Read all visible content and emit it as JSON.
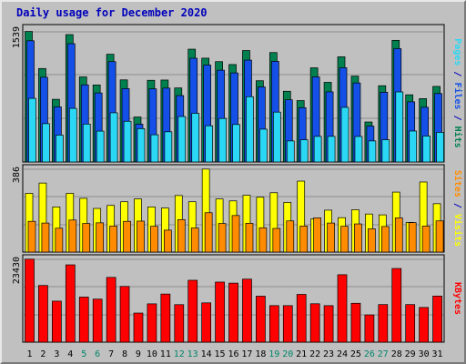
{
  "chart_data": [
    {
      "type": "bar",
      "title": "Daily usage for December 2020",
      "categories": [
        "1",
        "2",
        "3",
        "4",
        "5",
        "6",
        "7",
        "8",
        "9",
        "10",
        "11",
        "12",
        "13",
        "14",
        "15",
        "16",
        "17",
        "18",
        "19",
        "20",
        "21",
        "22",
        "23",
        "24",
        "25",
        "26",
        "27",
        "28",
        "29",
        "30",
        "31"
      ],
      "weekend_days": [
        "5",
        "6",
        "12",
        "13",
        "19",
        "20",
        "26",
        "27"
      ],
      "ymax_label": "1539",
      "ymax": 1539,
      "axis_legend": [
        "Pages",
        "Files",
        "Hits"
      ],
      "series": [
        {
          "name": "Hits",
          "color": "#007f4f",
          "values": [
            1539,
            1102,
            739,
            1502,
            1003,
            908,
            1270,
            968,
            530,
            963,
            966,
            873,
            1330,
            1224,
            1183,
            1149,
            1314,
            958,
            1290,
            834,
            724,
            1110,
            939,
            1240,
            1012,
            472,
            899,
            1434,
            792,
            747,
            891
          ]
        },
        {
          "name": "Files",
          "color": "#1450e8",
          "values": [
            1429,
            999,
            650,
            1395,
            909,
            814,
            1183,
            865,
            446,
            862,
            871,
            783,
            1223,
            1143,
            1082,
            1050,
            1201,
            885,
            1186,
            733,
            640,
            1003,
            827,
            1111,
            932,
            423,
            822,
            1336,
            709,
            645,
            807
          ]
        },
        {
          "name": "Pages",
          "color": "#2ad8f5",
          "values": [
            750,
            452,
            317,
            632,
            447,
            364,
            580,
            480,
            393,
            321,
            356,
            536,
            574,
            427,
            513,
            442,
            770,
            387,
            588,
            248,
            262,
            302,
            302,
            644,
            301,
            248,
            262,
            826,
            365,
            306,
            349
          ]
        }
      ]
    },
    {
      "type": "bar",
      "categories": [
        "1",
        "2",
        "3",
        "4",
        "5",
        "6",
        "7",
        "8",
        "9",
        "10",
        "11",
        "12",
        "13",
        "14",
        "15",
        "16",
        "17",
        "18",
        "19",
        "20",
        "21",
        "22",
        "23",
        "24",
        "25",
        "26",
        "27",
        "28",
        "29",
        "30",
        "31"
      ],
      "ymax_label": "386",
      "ymax": 386,
      "axis_legend": [
        "Sites",
        "Visits"
      ],
      "series": [
        {
          "name": "Visits",
          "color": "#ffff00",
          "values": [
            273,
            321,
            210,
            273,
            250,
            203,
            217,
            234,
            247,
            210,
            205,
            263,
            234,
            386,
            247,
            238,
            264,
            255,
            276,
            231,
            330,
            154,
            195,
            160,
            197,
            177,
            173,
            279,
            138,
            326,
            225
          ]
        },
        {
          "name": "Sites",
          "color": "#ff8c00",
          "values": [
            143,
            135,
            111,
            149,
            133,
            136,
            121,
            143,
            144,
            120,
            102,
            151,
            112,
            183,
            133,
            170,
            134,
            113,
            110,
            145,
            121,
            159,
            135,
            120,
            131,
            108,
            119,
            159,
            137,
            121,
            145
          ]
        }
      ]
    },
    {
      "type": "bar",
      "categories": [
        "1",
        "2",
        "3",
        "4",
        "5",
        "6",
        "7",
        "8",
        "9",
        "10",
        "11",
        "12",
        "13",
        "14",
        "15",
        "16",
        "17",
        "18",
        "19",
        "20",
        "21",
        "22",
        "23",
        "24",
        "25",
        "26",
        "27",
        "28",
        "29",
        "30",
        "31"
      ],
      "ymax_label": "23430",
      "ymax": 23430,
      "axis_legend": [
        "KBytes"
      ],
      "series": [
        {
          "name": "KBytes",
          "color": "#ff0000",
          "values": [
            23430,
            16002,
            11580,
            21828,
            12728,
            12144,
            18282,
            15736,
            8214,
            10816,
            13582,
            10584,
            17474,
            11090,
            16958,
            16668,
            17794,
            12978,
            10316,
            10308,
            13484,
            10840,
            10308,
            19040,
            10980,
            7694,
            10612,
            20800,
            10608,
            9796,
            13018
          ]
        }
      ]
    }
  ],
  "legend_colors": {
    "Hits": "#007f4f",
    "Files": "#1450e8",
    "Pages": "#2ad8f5",
    "Visits": "#ffff00",
    "Sites": "#ff8c00",
    "KBytes": "#ff0000",
    "separator": "#0000bb",
    "title": "#0000bb",
    "weekday_label": "#000000",
    "weekend_label": "#00856a"
  }
}
